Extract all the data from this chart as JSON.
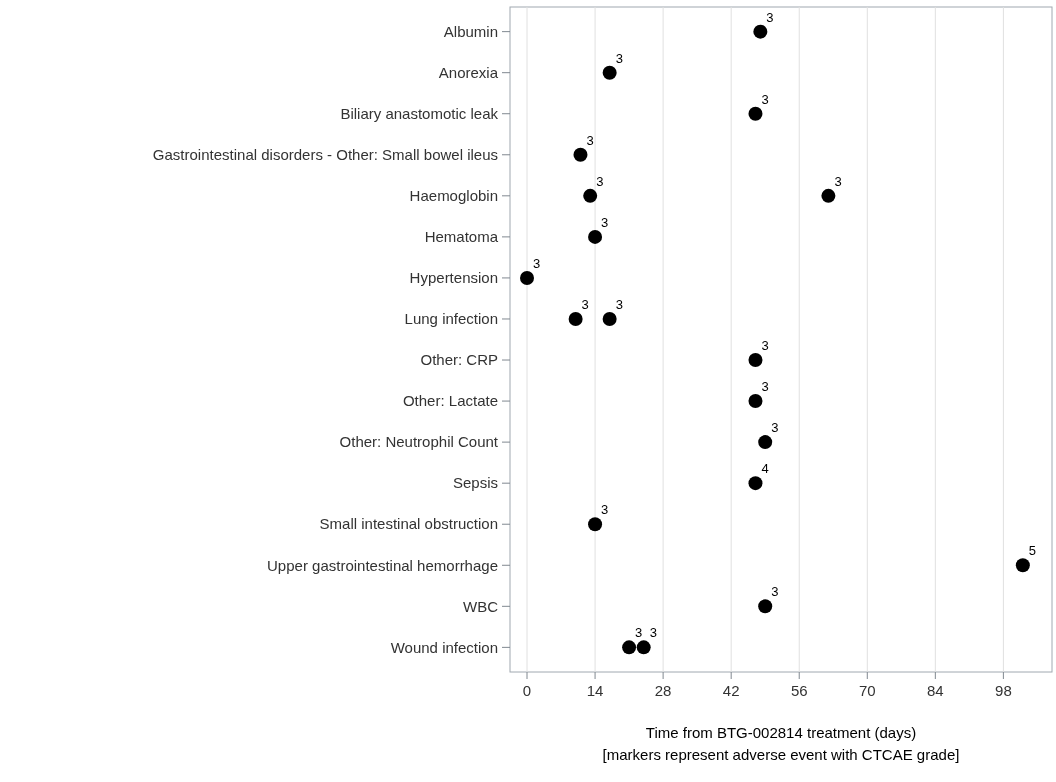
{
  "chart_data": {
    "type": "scatter",
    "orientation": "horizontal",
    "xlabel": "Time from BTG-002814 treatment (days)\n[markers represent adverse event with CTCAE grade]",
    "categories": [
      "Albumin",
      "Anorexia",
      "Biliary anastomotic leak",
      "Gastrointestinal disorders - Other: Small bowel ileus",
      "Haemoglobin",
      "Hematoma",
      "Hypertension",
      "Lung infection",
      "Other: CRP",
      "Other: Lactate",
      "Other: Neutrophil Count",
      "Sepsis",
      "Small intestinal obstruction",
      "Upper gastrointestinal hemorrhage",
      "WBC",
      "Wound infection"
    ],
    "series": [
      {
        "color": "#000000",
        "values": [
          48,
          17,
          47,
          11,
          13,
          14,
          0,
          10,
          47,
          47,
          49,
          47,
          14,
          102,
          49,
          21
        ]
      },
      {
        "color": "#000000",
        "values": [
          null,
          null,
          null,
          null,
          62,
          null,
          null,
          17,
          null,
          null,
          null,
          null,
          null,
          null,
          null,
          24
        ]
      }
    ],
    "annotations": [
      {
        "text": "3",
        "x": 48,
        "y": "Albumin"
      },
      {
        "text": "3",
        "x": 17,
        "y": "Anorexia"
      },
      {
        "text": "3",
        "x": 47,
        "y": "Biliary anastomotic leak"
      },
      {
        "text": "3",
        "x": 11,
        "y": "Gastrointestinal disorders - Other: Small bowel ileus"
      },
      {
        "text": "3",
        "x": 13,
        "y": "Haemoglobin"
      },
      {
        "text": "3",
        "x": 62,
        "y": "Haemoglobin"
      },
      {
        "text": "3",
        "x": 14,
        "y": "Hematoma"
      },
      {
        "text": "3",
        "x": 0,
        "y": "Hypertension"
      },
      {
        "text": "3",
        "x": 10,
        "y": "Lung infection"
      },
      {
        "text": "3",
        "x": 17,
        "y": "Lung infection"
      },
      {
        "text": "3",
        "x": 47,
        "y": "Other: CRP"
      },
      {
        "text": "3",
        "x": 47,
        "y": "Other: Lactate"
      },
      {
        "text": "3",
        "x": 49,
        "y": "Other: Neutrophil Count"
      },
      {
        "text": "4",
        "x": 47,
        "y": "Sepsis"
      },
      {
        "text": "3",
        "x": 14,
        "y": "Small intestinal obstruction"
      },
      {
        "text": "5",
        "x": 102,
        "y": "Upper gastrointestinal hemorrhage"
      },
      {
        "text": "3",
        "x": 49,
        "y": "WBC"
      },
      {
        "text": "3",
        "x": 21,
        "y": "Wound infection"
      },
      {
        "text": "3",
        "x": 24,
        "y": "Wound infection"
      }
    ],
    "xlim": [
      -3.5,
      108
    ],
    "xticks": [
      0,
      14,
      28,
      42,
      56,
      70,
      84,
      98
    ],
    "grid": "x",
    "marker": "circle"
  }
}
